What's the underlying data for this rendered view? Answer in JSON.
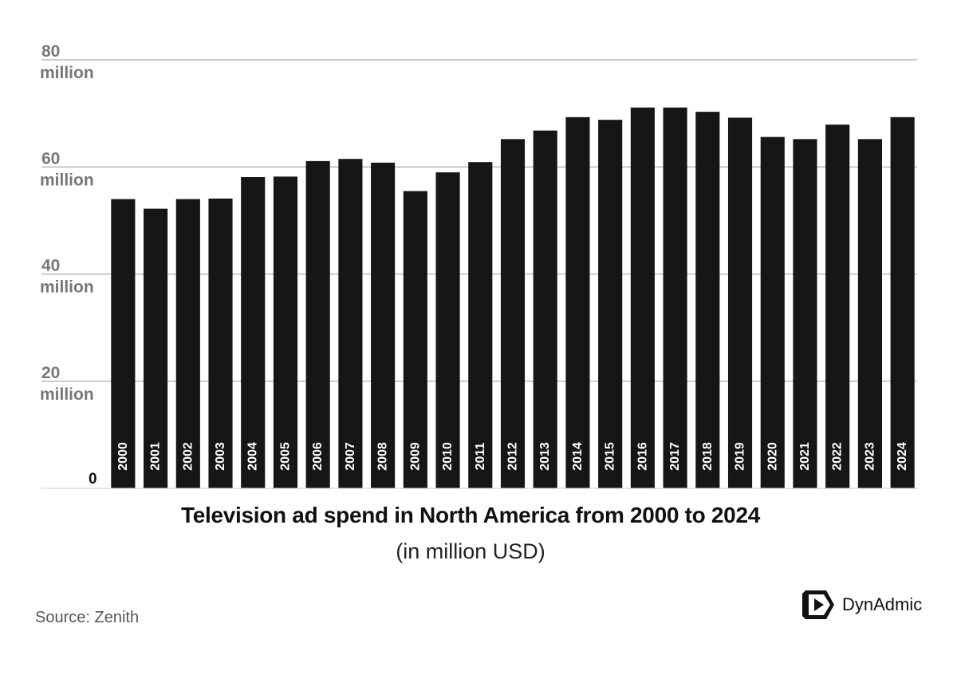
{
  "chart_data": {
    "type": "bar",
    "title": "Television ad spend in North America from 2000 to 2024",
    "subtitle": "(in million USD)",
    "categories": [
      "2000",
      "2001",
      "2002",
      "2003",
      "2004",
      "2005",
      "2006",
      "2007",
      "2008",
      "2009",
      "2010",
      "2011",
      "2012",
      "2013",
      "2014",
      "2015",
      "2016",
      "2017",
      "2018",
      "2019",
      "2020",
      "2021",
      "2022",
      "2023",
      "2024"
    ],
    "values": [
      54.0,
      52.2,
      54.0,
      54.1,
      58.1,
      58.2,
      61.1,
      61.5,
      60.8,
      55.5,
      59.0,
      60.9,
      65.2,
      66.8,
      69.3,
      68.8,
      71.1,
      71.1,
      70.3,
      69.2,
      65.6,
      65.2,
      67.9,
      65.2,
      69.3
    ],
    "y_ticks": [
      {
        "value": 80,
        "label_line1": "80",
        "label_line2": "million"
      },
      {
        "value": 60,
        "label_line1": "60",
        "label_line2": "million"
      },
      {
        "value": 40,
        "label_line1": "40",
        "label_line2": "million"
      },
      {
        "value": 20,
        "label_line1": "20",
        "label_line2": "million"
      }
    ],
    "zero_label": "0",
    "ylim": [
      0,
      80
    ],
    "grid": true,
    "xlabel": "",
    "ylabel": "",
    "bar_color": "#161616",
    "grid_color": "#bbbbbb"
  },
  "footer": {
    "source": "Source: Zenith",
    "brand": "DynAdmic",
    "brand_icon": "play-icon"
  }
}
